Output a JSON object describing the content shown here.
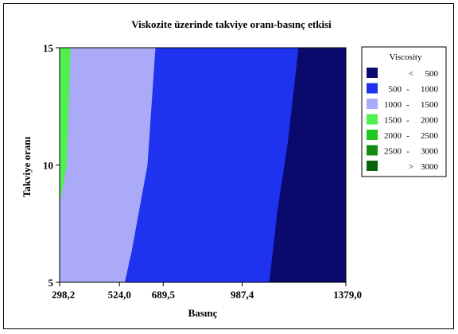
{
  "chart_data": {
    "type": "heatmap",
    "subtype": "contour",
    "title": "Viskozite üzerinde takviye oranı-basınç etkisi",
    "xlabel": "Basınç",
    "ylabel": "Takviye oranı",
    "xlim": [
      298.2,
      1379.0
    ],
    "ylim": [
      5,
      15
    ],
    "x_ticks": [
      "298,2",
      "524,0",
      "689,5",
      "987,4",
      "1379,0"
    ],
    "y_ticks": [
      "5",
      "10",
      "15"
    ],
    "legend": {
      "title": "Viscosity",
      "position": "right",
      "levels": [
        {
          "op": "<",
          "from": "",
          "to": "500",
          "label": "< 500",
          "color": "#0a0a6e"
        },
        {
          "op": "-",
          "from": "500",
          "to": "1000",
          "label": "500 - 1000",
          "color": "#1f32f0"
        },
        {
          "op": "-",
          "from": "1000",
          "to": "1500",
          "label": "1000 - 1500",
          "color": "#aaaaf8"
        },
        {
          "op": "-",
          "from": "1500",
          "to": "2000",
          "label": "1500 - 2000",
          "color": "#50f050"
        },
        {
          "op": "-",
          "from": "2000",
          "to": "2500",
          "label": "2000 - 2500",
          "color": "#1ec81e"
        },
        {
          "op": "-",
          "from": "2500",
          "to": "3000",
          "label": "2500 - 3000",
          "color": "#128c12"
        },
        {
          "op": ">",
          "from": "",
          "to": "3000",
          "label": "> 3000",
          "color": "#0a640a"
        }
      ]
    },
    "contours": [
      {
        "level": "< 500",
        "color": "#0a0a6e",
        "boundary": [
          [
            1090,
            5
          ],
          [
            1120,
            8
          ],
          [
            1160,
            11
          ],
          [
            1200,
            15
          ]
        ]
      },
      {
        "level": "500 - 1000",
        "color": "#1f32f0",
        "boundary": [
          [
            544,
            5
          ],
          [
            570,
            6.3
          ],
          [
            630,
            10
          ],
          [
            660,
            15
          ]
        ]
      },
      {
        "level": "1000 - 1500",
        "color": "#aaaaf8",
        "boundary": [
          [
            298.2,
            8.3
          ],
          [
            325,
            10
          ],
          [
            340,
            15
          ]
        ]
      },
      {
        "level": "1500 - 2000",
        "color": "#50f050",
        "boundary": []
      }
    ]
  }
}
